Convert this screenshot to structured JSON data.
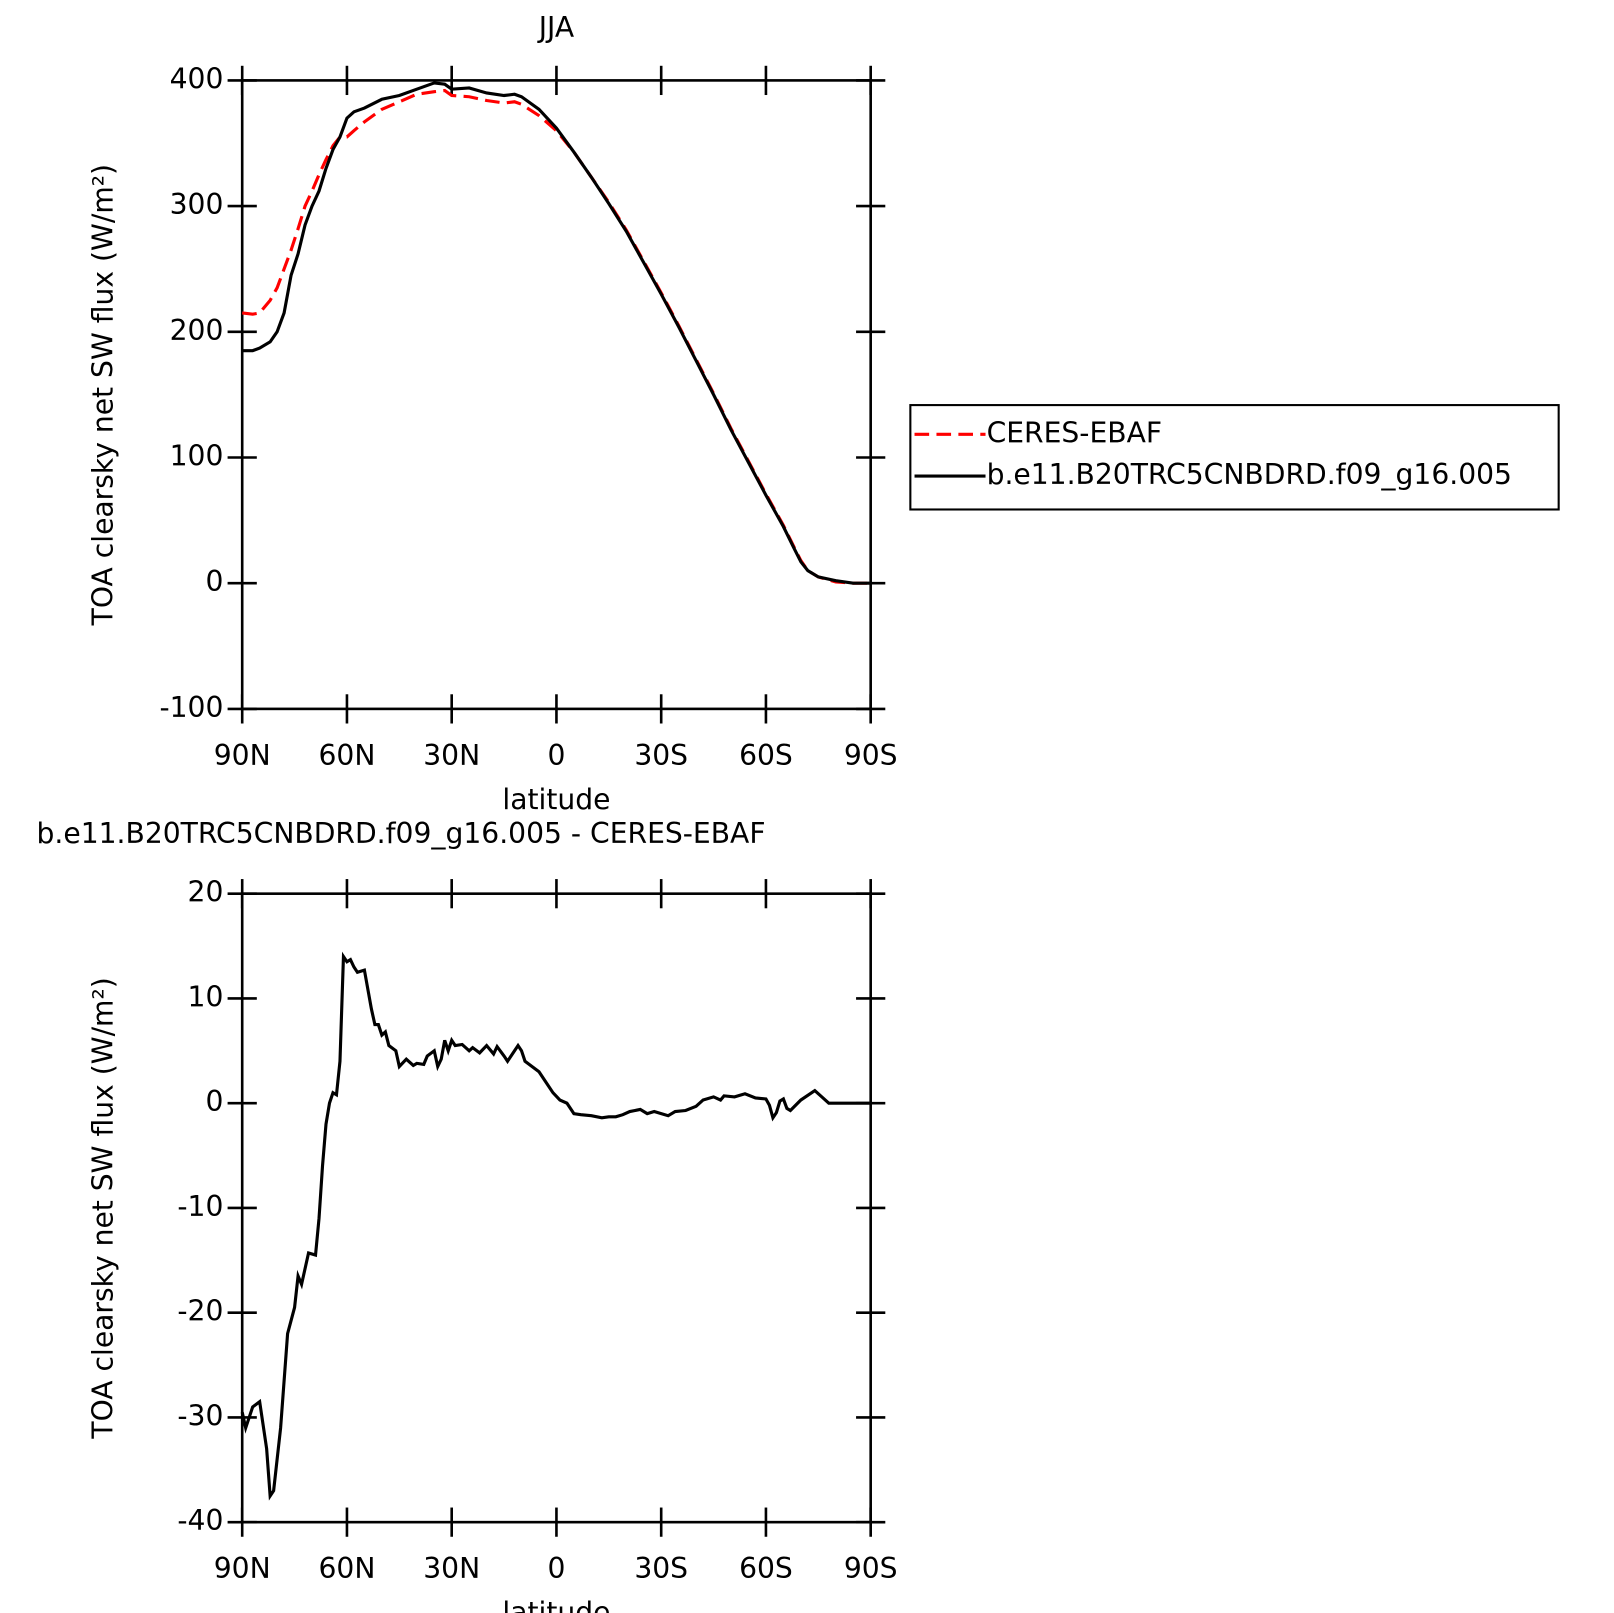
{
  "chart_data": [
    {
      "type": "line",
      "title": "JJA",
      "x_label": "latitude",
      "y_label": "TOA clearsky net SW flux (W/m²)",
      "x": [
        90,
        87,
        85,
        82,
        80,
        78,
        76,
        74,
        72,
        70,
        68,
        66,
        64,
        62,
        60,
        58,
        55,
        50,
        45,
        40,
        35,
        32,
        30,
        25,
        20,
        15,
        12,
        10,
        5,
        0,
        -5,
        -10,
        -15,
        -20,
        -25,
        -30,
        -35,
        -40,
        -45,
        -50,
        -55,
        -60,
        -65,
        -68,
        -70,
        -72,
        -75,
        -80,
        -85,
        -90
      ],
      "series": [
        {
          "name": "CERES-EBAF",
          "color": "#ff0000",
          "style": "dashed",
          "values": [
            215,
            214,
            215,
            225,
            235,
            250,
            265,
            282,
            300,
            312,
            325,
            337,
            348,
            355,
            355,
            360,
            367,
            377,
            383,
            389,
            391,
            392,
            388,
            387,
            384,
            382,
            383,
            381,
            372,
            360,
            343,
            323,
            303,
            281,
            256,
            231,
            205,
            178,
            151,
            123,
            97,
            71,
            46,
            29,
            18,
            10,
            5,
            1,
            0,
            0
          ]
        },
        {
          "name": "b.e11.B20TRC5CNBDRD.f09_g16.005",
          "color": "#000000",
          "style": "solid",
          "values": [
            185,
            185,
            187,
            192,
            200,
            215,
            245,
            262,
            285,
            300,
            312,
            330,
            345,
            355,
            370,
            375,
            378,
            385,
            388,
            393,
            398,
            397,
            393,
            394,
            390,
            388,
            389,
            387,
            377,
            362,
            343,
            323,
            302,
            280,
            255,
            230,
            204,
            177,
            150,
            122,
            96,
            70,
            45,
            28,
            17,
            10,
            5,
            2,
            0,
            0
          ]
        }
      ],
      "xlim": [
        90,
        -90
      ],
      "xticks": [
        {
          "value": 90,
          "label": "90N"
        },
        {
          "value": 60,
          "label": "60N"
        },
        {
          "value": 30,
          "label": "30N"
        },
        0,
        {
          "value": -30,
          "label": "30S"
        },
        {
          "value": -60,
          "label": "60S"
        },
        {
          "value": -90,
          "label": "90S"
        }
      ],
      "ylim": [
        -100,
        400
      ],
      "yticks": [
        -100,
        0,
        100,
        200,
        300,
        400
      ],
      "legend": "right"
    },
    {
      "type": "line",
      "title": "b.e11.B20TRC5CNBDRD.f09_g16.005 - CERES-EBAF",
      "x_label": "latitude",
      "y_label": "TOA clearsky net SW flux (W/m²)",
      "x": [
        90,
        89,
        87,
        85,
        83,
        82,
        81,
        79,
        77,
        75,
        74,
        73,
        71,
        69,
        68,
        67,
        66,
        65,
        64,
        63,
        62,
        61,
        60,
        59,
        58,
        57,
        55,
        53,
        52,
        51,
        50,
        49,
        48,
        46,
        45,
        43,
        41,
        40,
        38,
        37,
        35,
        34,
        33,
        32,
        31,
        30,
        29,
        27,
        25,
        24,
        22,
        20,
        18,
        17,
        15,
        14,
        12,
        11,
        10,
        9,
        7,
        5,
        3,
        1,
        -1,
        -3,
        -5,
        -7,
        -10,
        -13,
        -15,
        -17,
        -19,
        -21,
        -24,
        -26,
        -28,
        -30,
        -32,
        -34,
        -37,
        -40,
        -42,
        -45,
        -47,
        -48,
        -51,
        -54,
        -57,
        -60,
        -61,
        -62,
        -63,
        -64,
        -65,
        -66,
        -67,
        -70,
        -74,
        -76,
        -78,
        -90
      ],
      "series": [
        {
          "color": "#000000",
          "style": "solid",
          "values": [
            -29.5,
            -31,
            -29,
            -28.5,
            -33,
            -37.5,
            -37,
            -31,
            -22,
            -19.5,
            -16.5,
            -17.3,
            -14.3,
            -14.5,
            -11,
            -6,
            -2,
            0,
            1,
            0.8,
            4,
            14,
            13.5,
            13.7,
            13,
            12.5,
            12.7,
            9,
            7.5,
            7.5,
            6.5,
            6.8,
            5.5,
            5,
            3.5,
            4.2,
            3.6,
            3.8,
            3.7,
            4.5,
            5,
            3.5,
            4.2,
            6,
            5,
            6,
            5.5,
            5.6,
            5,
            5.3,
            4.8,
            5.5,
            4.7,
            5.4,
            4.5,
            4,
            5,
            5.5,
            5,
            4,
            3.5,
            3,
            2,
            1,
            0.3,
            0,
            -1,
            -1.1,
            -1.2,
            -1.4,
            -1.3,
            -1.3,
            -1.1,
            -0.8,
            -0.6,
            -1,
            -0.8,
            -1,
            -1.2,
            -0.8,
            -0.7,
            -0.3,
            0.3,
            0.6,
            0.3,
            0.7,
            0.6,
            0.9,
            0.5,
            0.4,
            -0.2,
            -1.4,
            -0.9,
            0.2,
            0.4,
            -0.5,
            -0.7,
            0.3,
            1.2,
            0.6,
            0,
            0
          ]
        }
      ],
      "xlim": [
        90,
        -90
      ],
      "xticks": [
        {
          "value": 90,
          "label": "90N"
        },
        {
          "value": 60,
          "label": "60N"
        },
        {
          "value": 30,
          "label": "30N"
        },
        0,
        {
          "value": -30,
          "label": "30S"
        },
        {
          "value": -60,
          "label": "60S"
        },
        {
          "value": -90,
          "label": "90S"
        }
      ],
      "ylim": [
        -40,
        20
      ],
      "yticks": [
        -40,
        -30,
        -20,
        -10,
        0,
        10,
        20
      ]
    }
  ]
}
